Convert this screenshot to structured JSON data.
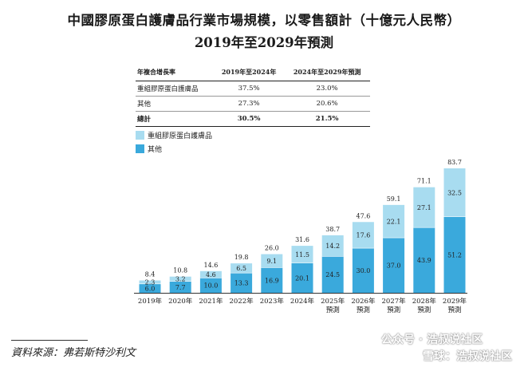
{
  "title_line1": "中國膠原蛋白護膚品行業市場規模，以零售額計（十億元人民幣）",
  "title_line2": "2019年至2029年預測",
  "cagr_table": {
    "header": [
      "年複合增長率",
      "2019年至2024年",
      "2024年至2029年預測"
    ],
    "rows": [
      {
        "label": "重組膠原蛋白護膚品",
        "v1": "37.5%",
        "v2": "23.0%"
      },
      {
        "label": "其他",
        "v1": "27.3%",
        "v2": "20.6%"
      }
    ],
    "total": {
      "label": "總計",
      "v1": "30.5%",
      "v2": "21.5%"
    }
  },
  "legend": {
    "recombinant": "重組膠原蛋白護膚品",
    "other": "其他"
  },
  "colors": {
    "recombinant": "#a8dcf0",
    "other": "#3aa9dc"
  },
  "chart_data": {
    "type": "bar",
    "stacked": true,
    "categories": [
      "2019年",
      "2020年",
      "2021年",
      "2022年",
      "2023年",
      "2024年",
      "2025年 預測",
      "2026年 預測",
      "2027年 預測",
      "2028年 預測",
      "2029年 預測"
    ],
    "series": [
      {
        "name": "其他",
        "values": [
          6.0,
          7.7,
          10.0,
          13.3,
          16.9,
          20.1,
          24.5,
          30.0,
          37.0,
          43.9,
          51.2
        ]
      },
      {
        "name": "重組膠原蛋白護膚品",
        "values": [
          2.3,
          3.2,
          4.6,
          6.5,
          9.1,
          11.5,
          14.2,
          17.6,
          22.1,
          27.1,
          32.5
        ]
      }
    ],
    "totals": [
      8.4,
      10.8,
      14.6,
      19.8,
      26.0,
      31.6,
      38.7,
      47.6,
      59.1,
      71.1,
      83.7
    ],
    "ylim": [
      0,
      83.7
    ]
  },
  "source": "資料來源：弗若斯特沙利文",
  "watermark": "公众号 · 浩叔说社区",
  "watermark2": "雪球：浩叔说社区"
}
